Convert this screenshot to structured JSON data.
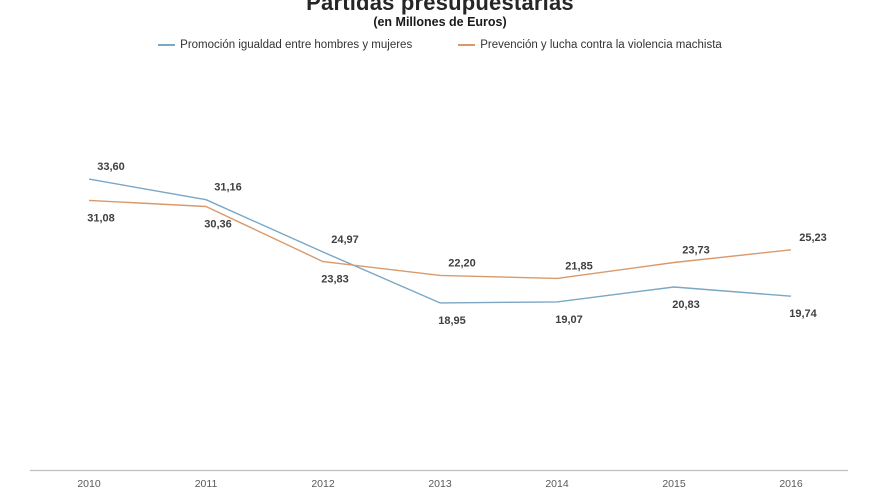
{
  "chart_data": {
    "type": "line",
    "title": "Partidas presupuestarias",
    "subtitle": "(en Millones de Euros)",
    "categories": [
      "2010",
      "2011",
      "2012",
      "2013",
      "2014",
      "2015",
      "2016"
    ],
    "series": [
      {
        "name": "Promoción igualdad entre hombres y mujeres",
        "color": "#79A7C5",
        "values": [
          33.6,
          31.16,
          24.97,
          18.95,
          19.07,
          20.83,
          19.74
        ],
        "labels": [
          "33,60",
          "31,16",
          "24,97",
          "18,95",
          "19,07",
          "20,83",
          "19,74"
        ],
        "label_position": [
          "above",
          "above",
          "above",
          "below",
          "below",
          "below",
          "below"
        ]
      },
      {
        "name": "Prevención y lucha contra la violencia machista",
        "color": "#D9996B",
        "values": [
          31.08,
          30.36,
          23.83,
          22.2,
          21.85,
          23.73,
          25.23
        ],
        "labels": [
          "31,08",
          "30,36",
          "23,83",
          "22,20",
          "21,85",
          "23,73",
          "25,23"
        ],
        "label_position": [
          "below",
          "below",
          "below",
          "above",
          "above",
          "above",
          "above"
        ]
      }
    ],
    "xlabel": "",
    "ylabel": "",
    "ylim": [
      17,
      35
    ],
    "grid": false,
    "legend_position": "top",
    "colors": {
      "axis_line": "#BFBFBF",
      "tick_label": "#595959",
      "data_label": "#404040"
    }
  }
}
